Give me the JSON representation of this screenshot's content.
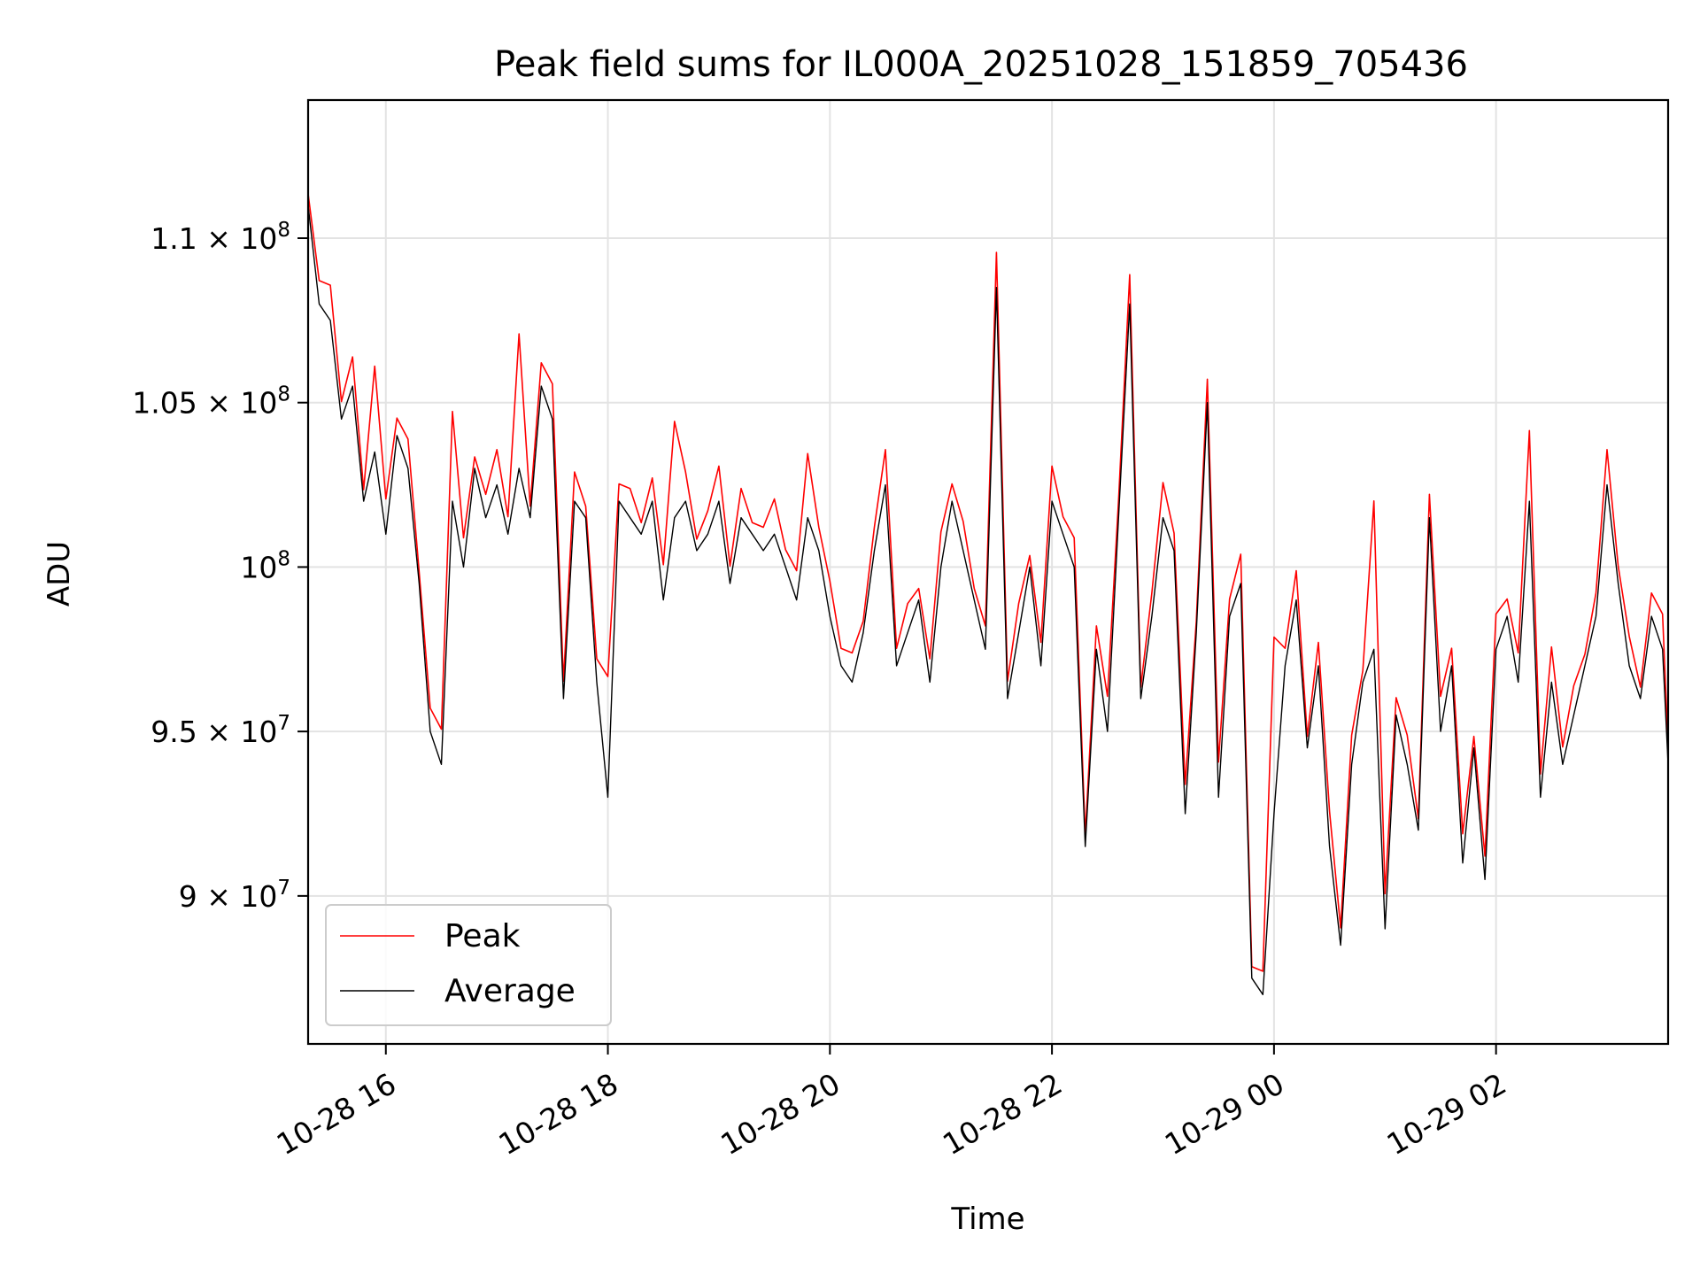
{
  "chart_data": {
    "type": "line",
    "title": "Peak field sums for IL000A_20251028_151859_705436",
    "xlabel": "Time",
    "ylabel": "ADU",
    "x_unit": "hours since 10-28 15:18",
    "xlim": [
      0,
      12.25
    ],
    "ylim": [
      85500000,
      114200000
    ],
    "grid": true,
    "legend": "lower-left",
    "x_ticks": [
      {
        "x": 0.7,
        "label": "10-28 16"
      },
      {
        "x": 2.7,
        "label": "10-28 18"
      },
      {
        "x": 4.7,
        "label": "10-28 20"
      },
      {
        "x": 6.7,
        "label": "10-28 22"
      },
      {
        "x": 8.7,
        "label": "10-29 00"
      },
      {
        "x": 10.7,
        "label": "10-29 02"
      }
    ],
    "y_ticks": [
      {
        "y": 90000000,
        "mant": "9",
        "exp": "7"
      },
      {
        "y": 95000000,
        "mant": "9.5",
        "exp": "7"
      },
      {
        "y": 100000000,
        "mant": "10",
        "exp": "8"
      },
      {
        "y": 105000000,
        "mant": "1.05",
        "exp": "8"
      },
      {
        "y": 110000000,
        "mant": "1.1",
        "exp": "8"
      }
    ],
    "series": [
      {
        "name": "Peak",
        "color": "#ff0000"
      },
      {
        "name": "Average",
        "color": "#000000"
      }
    ],
    "x": [
      0,
      0.1,
      0.2,
      0.3,
      0.4,
      0.5,
      0.6,
      0.7,
      0.8,
      0.9,
      1.0,
      1.1,
      1.2,
      1.3,
      1.4,
      1.5,
      1.6,
      1.7,
      1.8,
      1.9,
      2.0,
      2.1,
      2.2,
      2.3,
      2.4,
      2.5,
      2.6,
      2.7,
      2.8,
      2.9,
      3.0,
      3.1,
      3.2,
      3.3,
      3.4,
      3.5,
      3.6,
      3.7,
      3.8,
      3.9,
      4.0,
      4.1,
      4.2,
      4.3,
      4.4,
      4.5,
      4.6,
      4.7,
      4.8,
      4.9,
      5.0,
      5.1,
      5.2,
      5.3,
      5.4,
      5.5,
      5.6,
      5.7,
      5.8,
      5.9,
      6.0,
      6.1,
      6.2,
      6.3,
      6.4,
      6.5,
      6.6,
      6.7,
      6.8,
      6.9,
      7.0,
      7.1,
      7.2,
      7.3,
      7.4,
      7.5,
      7.6,
      7.7,
      7.8,
      7.9,
      8.0,
      8.1,
      8.2,
      8.3,
      8.4,
      8.5,
      8.6,
      8.7,
      8.8,
      8.9,
      9.0,
      9.1,
      9.2,
      9.3,
      9.4,
      9.5,
      9.6,
      9.7,
      9.8,
      9.9,
      10.0,
      10.1,
      10.2,
      10.3,
      10.4,
      10.5,
      10.6,
      10.7,
      10.8,
      10.9,
      11.0,
      11.1,
      11.2,
      11.3,
      11.4,
      11.5,
      11.6,
      11.7,
      11.8,
      11.9,
      12.0,
      12.1,
      12.2,
      12.25
    ],
    "average": [
      111000000,
      108000000,
      107500000,
      104500000,
      105500000,
      102000000,
      103500000,
      101000000,
      104000000,
      103000000,
      99500000,
      95000000,
      94000000,
      102000000,
      100000000,
      103000000,
      101500000,
      102500000,
      101000000,
      103000000,
      101500000,
      105500000,
      104500000,
      96000000,
      102000000,
      101500000,
      96500000,
      93000000,
      102000000,
      101500000,
      101000000,
      102000000,
      99000000,
      101500000,
      102000000,
      100500000,
      101000000,
      102000000,
      99500000,
      101500000,
      101000000,
      100500000,
      101000000,
      100000000,
      99000000,
      101500000,
      100500000,
      98500000,
      97000000,
      96500000,
      98000000,
      100500000,
      102500000,
      97000000,
      98000000,
      99000000,
      96500000,
      100000000,
      102000000,
      100500000,
      99000000,
      97500000,
      108500000,
      96000000,
      98000000,
      100000000,
      97000000,
      102000000,
      101000000,
      100000000,
      91500000,
      97500000,
      95000000,
      101500000,
      108000000,
      96000000,
      98500000,
      101500000,
      100500000,
      92500000,
      98000000,
      105000000,
      93000000,
      98500000,
      99500000,
      87500000,
      87000000,
      92500000,
      97000000,
      99000000,
      94500000,
      97000000,
      91500000,
      88500000,
      94000000,
      96500000,
      97500000,
      89000000,
      95500000,
      94000000,
      92000000,
      101500000,
      95000000,
      97000000,
      91000000,
      94500000,
      90500000,
      97500000,
      98500000,
      96500000,
      102000000,
      93000000,
      96500000,
      94000000,
      95500000,
      97000000,
      98500000,
      102500000,
      99500000,
      97000000,
      96000000,
      98500000,
      97500000,
      94000000
    ]
  }
}
